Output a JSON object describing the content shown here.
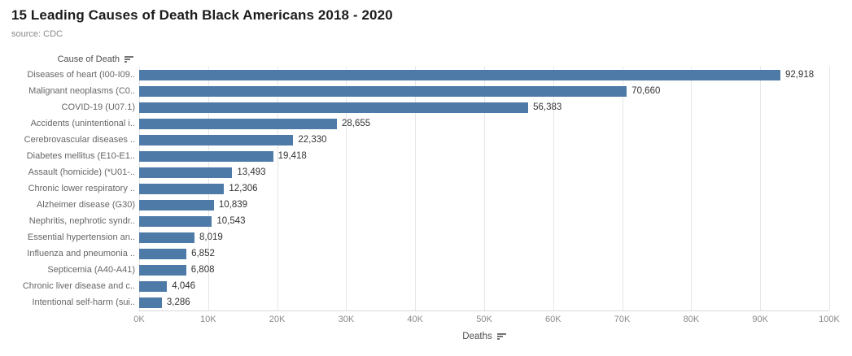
{
  "page": {
    "title": "15 Leading Causes of Death Black Americans 2018 - 2020",
    "subtitle": "source: CDC"
  },
  "row_axis": {
    "header": "Cause of Death"
  },
  "x_axis": {
    "label": "Deaths",
    "ticks": [
      "0K",
      "10K",
      "20K",
      "30K",
      "40K",
      "50K",
      "60K",
      "70K",
      "80K",
      "90K",
      "100K"
    ]
  },
  "colors": {
    "bar": "#4e7aa8",
    "gridline": "#e6e6e6",
    "axis_line": "#d9d9d9",
    "title_text": "#1c1c1c",
    "muted_text": "#8a8a8a",
    "category_text": "#666666",
    "value_text": "#333333"
  },
  "chart_data": {
    "type": "bar",
    "orientation": "horizontal",
    "title": "15 Leading Causes of Death Black Americans 2018 - 2020",
    "subtitle": "source: CDC",
    "categories": [
      "Diseases of heart (I00-I09..",
      "Malignant neoplasms (C0..",
      "COVID-19 (U07.1)",
      "Accidents (unintentional i..",
      "Cerebrovascular diseases ..",
      "Diabetes mellitus (E10-E1..",
      "Assault (homicide) (*U01-..",
      "Chronic lower respiratory ..",
      "Alzheimer disease (G30)",
      "Nephritis, nephrotic syndr..",
      "Essential hypertension an..",
      "Influenza and pneumonia ..",
      "Septicemia (A40-A41)",
      "Chronic liver disease and c..",
      "Intentional self-harm (sui.."
    ],
    "values": [
      92918,
      70660,
      56383,
      28655,
      22330,
      19418,
      13493,
      12306,
      10839,
      10543,
      8019,
      6852,
      6808,
      4046,
      3286
    ],
    "value_labels": [
      "92,918",
      "70,660",
      "56,383",
      "28,655",
      "22,330",
      "19,418",
      "13,493",
      "12,306",
      "10,839",
      "10,543",
      "8,019",
      "6,852",
      "6,808",
      "4,046",
      "3,286"
    ],
    "xlabel": "Deaths",
    "ylabel": "Cause of Death",
    "x_ticks": [
      "0K",
      "10K",
      "20K",
      "30K",
      "40K",
      "50K",
      "60K",
      "70K",
      "80K",
      "90K",
      "100K"
    ],
    "xlim": [
      0,
      100000
    ],
    "grid": "vertical",
    "legend": "none",
    "sort": "descending"
  }
}
